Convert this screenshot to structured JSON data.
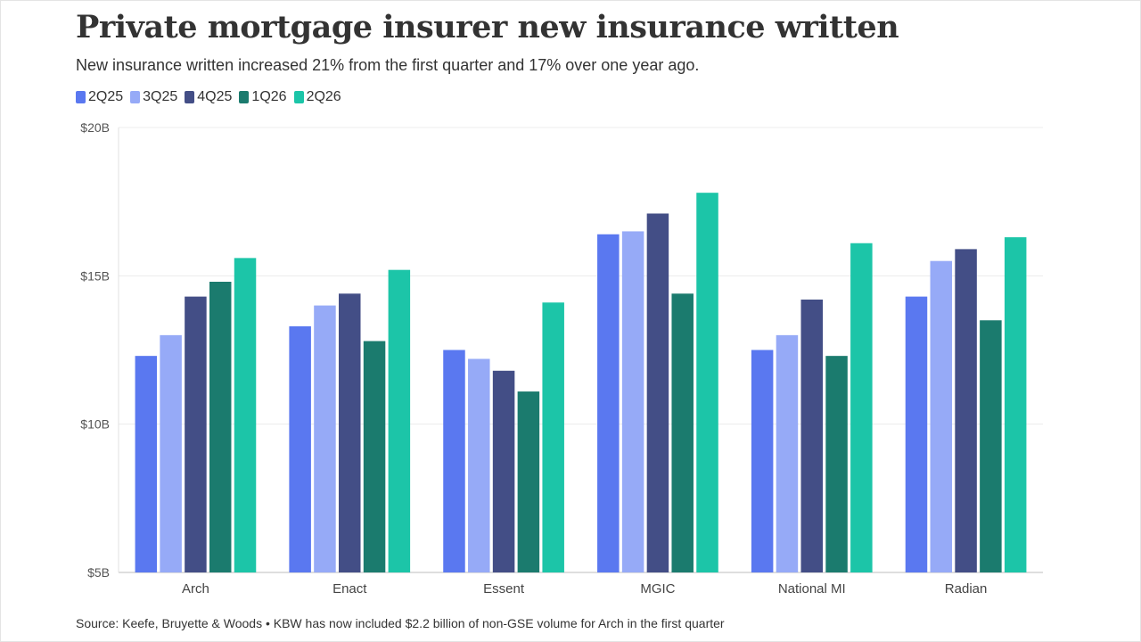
{
  "title": "Private mortgage insurer new insurance written",
  "subtitle": "New insurance written increased 21% from the first quarter and 17% over one year ago.",
  "source": "Source: Keefe, Bruyette & Woods • KBW has now included $2.2 billion of non-GSE volume for Arch in the first quarter",
  "colors": {
    "2Q25": "#5a78f0",
    "3Q25": "#96aaf7",
    "4Q25": "#434e86",
    "1Q26": "#1b7b6e",
    "2Q26": "#1cc5a8"
  },
  "chart_data": {
    "type": "bar",
    "categories": [
      "Arch",
      "Enact",
      "Essent",
      "MGIC",
      "National MI",
      "Radian"
    ],
    "series": [
      {
        "name": "2Q25",
        "values": [
          12.3,
          13.3,
          12.5,
          16.4,
          12.5,
          14.3
        ]
      },
      {
        "name": "3Q25",
        "values": [
          13.0,
          14.0,
          12.2,
          16.5,
          13.0,
          15.5
        ]
      },
      {
        "name": "4Q25",
        "values": [
          14.3,
          14.4,
          11.8,
          17.1,
          14.2,
          15.9
        ]
      },
      {
        "name": "1Q26",
        "values": [
          14.8,
          12.8,
          11.1,
          14.4,
          12.3,
          13.5
        ]
      },
      {
        "name": "2Q26",
        "values": [
          15.6,
          15.2,
          14.1,
          17.8,
          16.1,
          16.3
        ]
      }
    ],
    "ylim": [
      5,
      20
    ],
    "yticks": [
      5,
      10,
      15,
      20
    ],
    "ytick_labels": [
      "$5B",
      "$10B",
      "$15B",
      "$20B"
    ],
    "grid": true,
    "legend": "top-left",
    "unit": "billion USD"
  }
}
